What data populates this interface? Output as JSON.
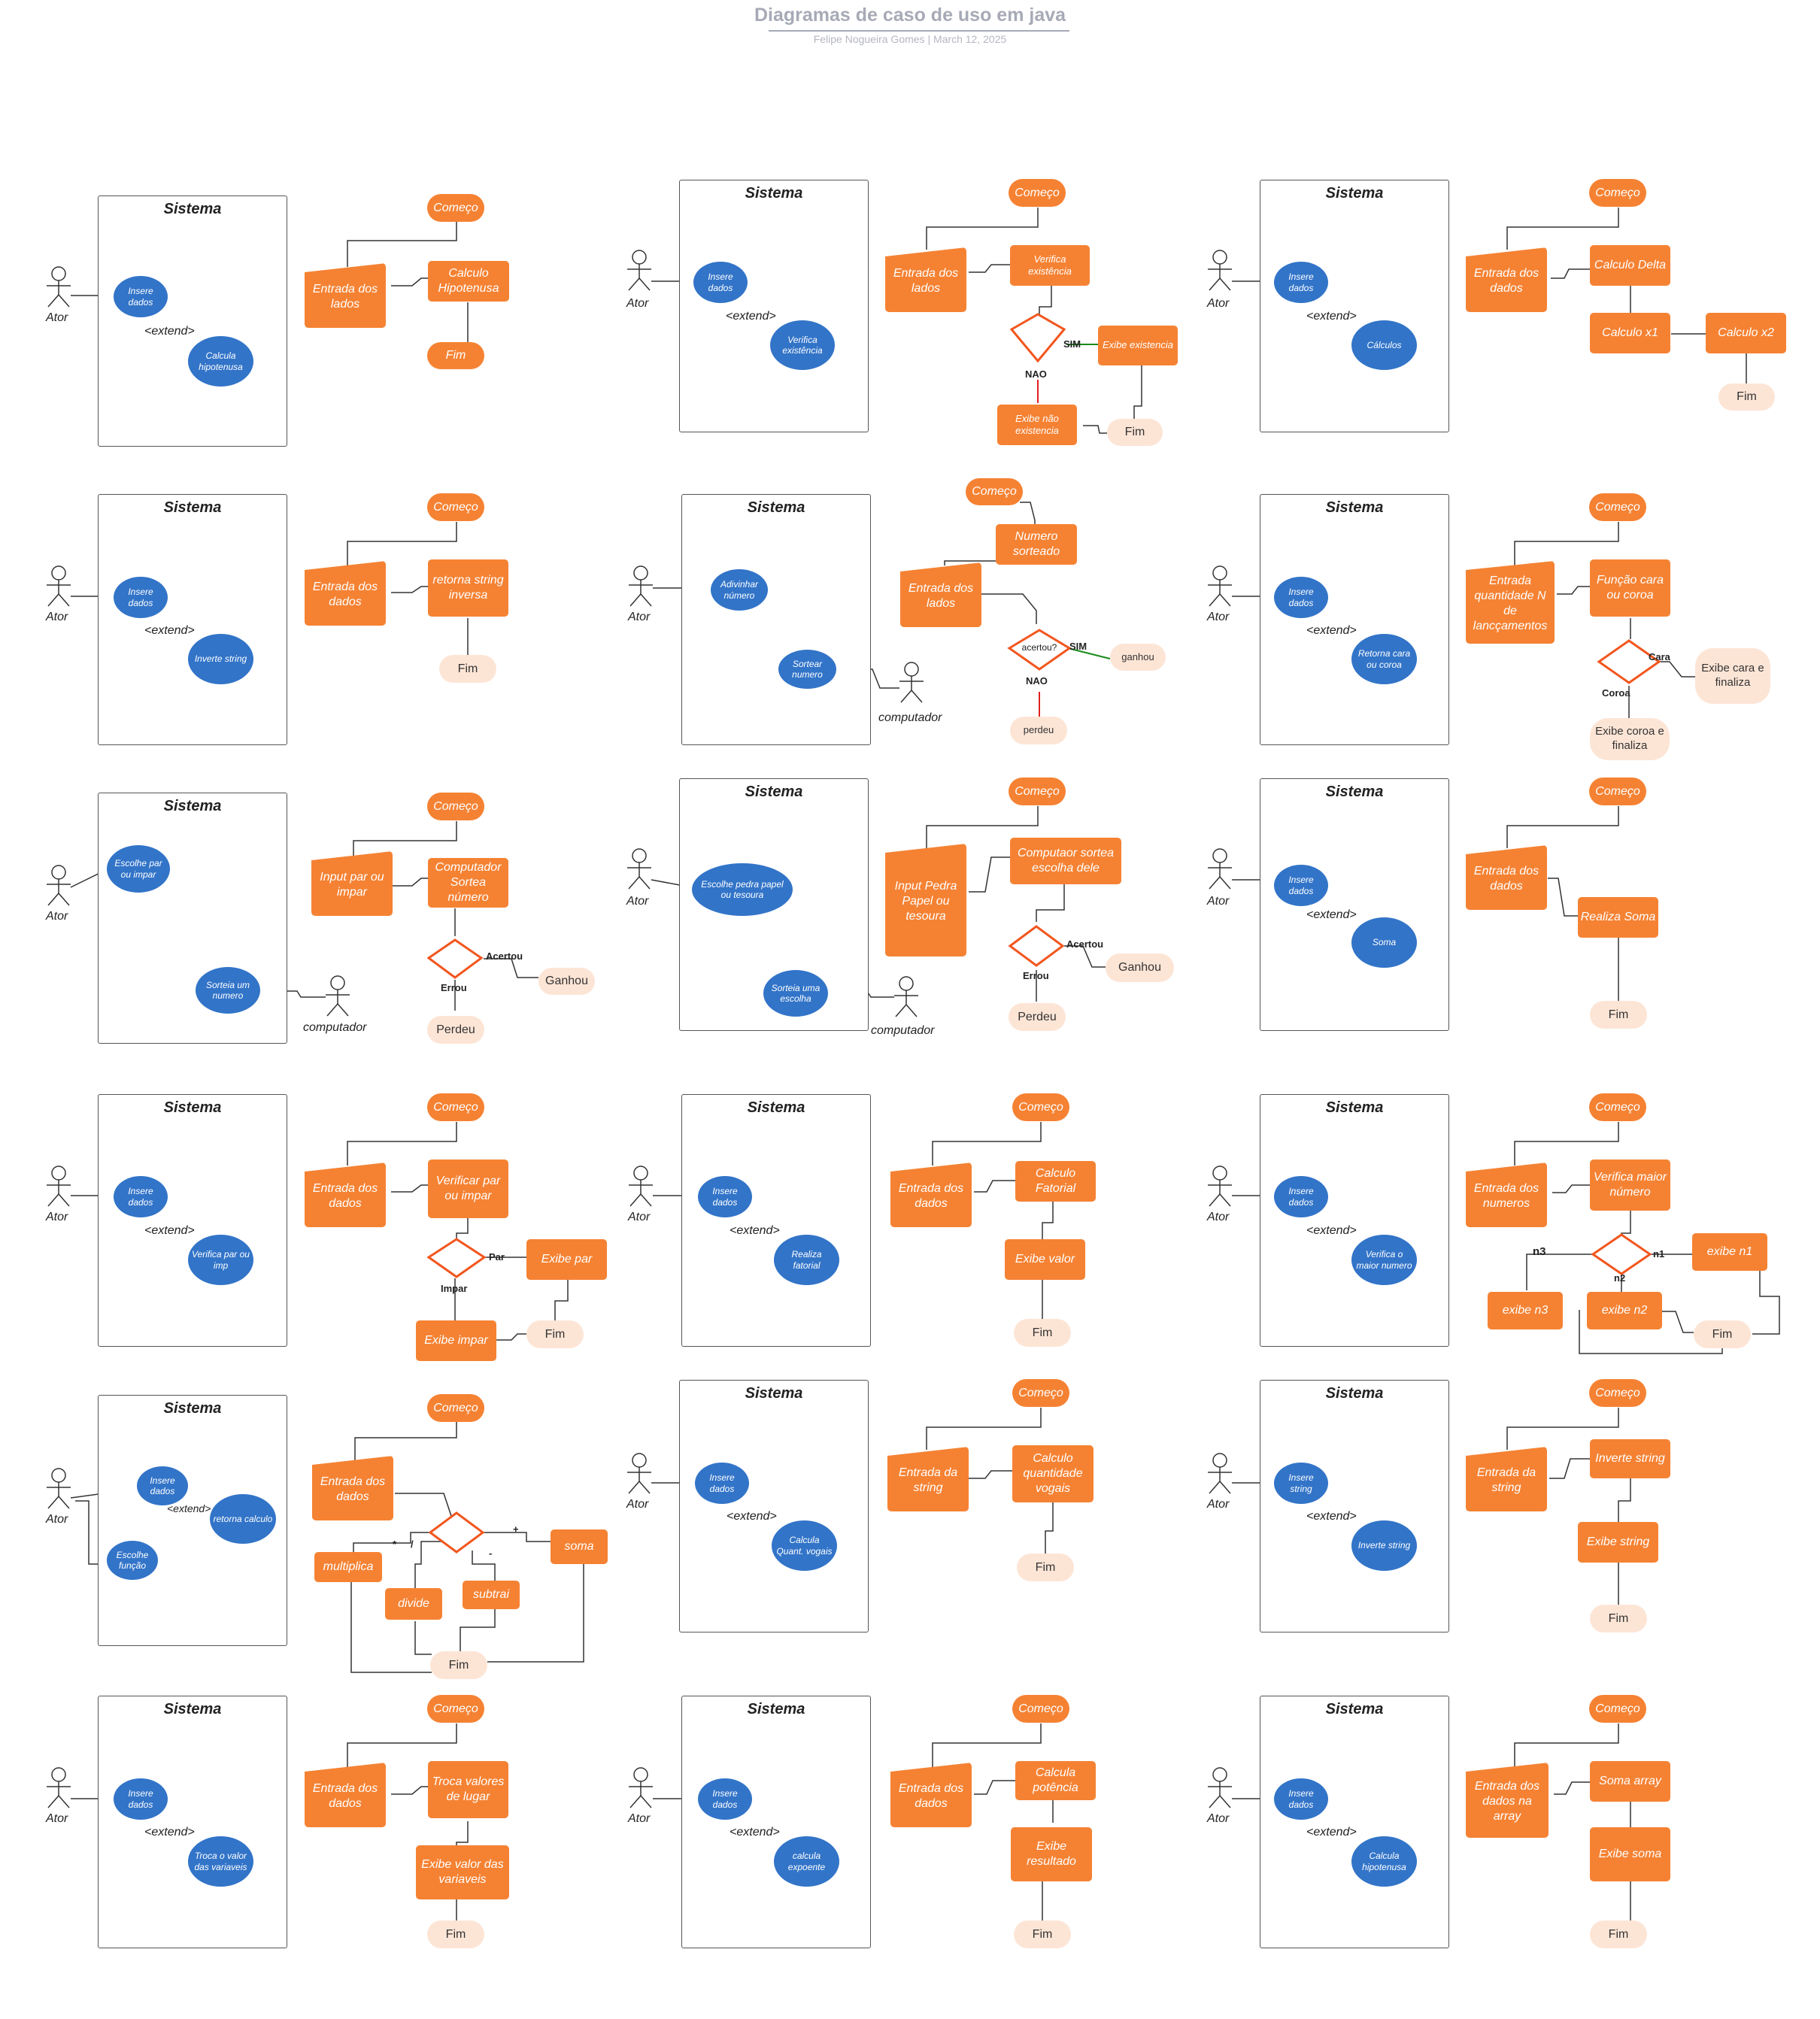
{
  "header": {
    "title": "Diagramas de caso de uso em java",
    "author": "Felipe Nogueira Gomes",
    "separator": "|",
    "date": "March 12, 2025"
  },
  "common": {
    "system": "Sistema",
    "actor": "Ator",
    "computer": "computador",
    "extend": "<extend>",
    "start": "Começo",
    "end": "Fim"
  },
  "d1": {
    "uc1": "Insere dados",
    "uc2": "Calcula hipotenusa",
    "p1": "Entrada dos lados",
    "p2": "Calculo Hipotenusa",
    "end": "Fim"
  },
  "d2": {
    "uc1": "Insere dados",
    "uc2": "Verifica existência",
    "p1": "Entrada dos lados",
    "p2": "Verifica existência",
    "yes": "SIM",
    "no": "NAO",
    "p3": "Exibe existencia",
    "p4": "Exibe não existencia"
  },
  "d3": {
    "uc1": "Insere dados",
    "uc2": "Cálculos",
    "p1": "Entrada dos dados",
    "p2": "Calculo Delta",
    "p3": "Calculo x1",
    "p4": "Calculo x2"
  },
  "d4": {
    "uc1": "Insere dados",
    "uc2": "Inverte string",
    "p1": "Entrada dos dados",
    "p2": "retorna string inversa"
  },
  "d5": {
    "uc1": "Adivinhar número",
    "uc2": "Sortear numero",
    "p0": "Numero sorteado",
    "p1": "Entrada dos lados",
    "dec": "acertou?",
    "yes": "SIM",
    "no": "NAO",
    "win": "ganhou",
    "lose": "perdeu"
  },
  "d6": {
    "uc1": "Insere dados",
    "uc2": "Retorna cara ou coroa",
    "p1": "Entrada quantidade N de lancçamentos",
    "p2": "Função cara ou coroa",
    "a": "Cara",
    "b": "Coroa",
    "ea": "Exibe cara e finaliza",
    "eb": "Exibe coroa e finaliza"
  },
  "d7": {
    "uc1": "Escolhe par ou impar",
    "uc2": "Sorteia um numero",
    "p1": "Input par ou impar",
    "p2": "Computador Sortea número",
    "yes": "Acertou",
    "no": "Errou",
    "win": "Ganhou",
    "lose": "Perdeu"
  },
  "d8": {
    "uc1": "Escolhe pedra papel ou tesoura",
    "uc2": "Sorteia uma escolha",
    "p1": "Input Pedra Papel ou tesoura",
    "p2": "Computaor sortea escolha dele",
    "yes": "Acertou",
    "no": "Errou",
    "win": "Ganhou",
    "lose": "Perdeu"
  },
  "d9": {
    "uc1": "Insere dados",
    "uc2": "Soma",
    "p1": "Entrada dos dados",
    "p2": "Realiza Soma"
  },
  "d10": {
    "uc1": "Insere dados",
    "uc2": "Verifica par ou imp",
    "p1": "Entrada dos dados",
    "p2": "Verificar par ou impar",
    "a": "Par",
    "b": "Impar",
    "ea": "Exibe par",
    "eb": "Exibe impar"
  },
  "d11": {
    "uc1": "Insere dados",
    "uc2": "Realiza fatorial",
    "p1": "Entrada dos dados",
    "p2": "Calculo Fatorial",
    "p3": "Exibe valor"
  },
  "d12": {
    "uc1": "Insere dados",
    "uc2": "Verifica o maior numero",
    "p1": "Entrada dos numeros",
    "p2": "Verifica maior número",
    "l1": "n1",
    "l2": "n2",
    "l3": "n3",
    "e1": "exibe n1",
    "e2": "exibe n2",
    "e3": "exibe n3"
  },
  "d13": {
    "uc1": "Insere dados",
    "uc2": "retorna calculo",
    "uc3": "Escolhe função",
    "p1": "Entrada dos dados",
    "o1": "*",
    "o2": "/",
    "o3": "-",
    "o4": "+",
    "f1": "multiplica",
    "f2": "divide",
    "f3": "subtrai",
    "f4": "soma"
  },
  "d14": {
    "uc1": "Insere dados",
    "uc2": "Calcula Quant. vogais",
    "p1": "Entrada da string",
    "p2": "Calculo quantidade vogais"
  },
  "d15": {
    "uc1": "Insere string",
    "uc2": "Inverte string",
    "p1": "Entrada da string",
    "p2": "Inverte string",
    "p3": "Exibe string"
  },
  "d16": {
    "uc1": "Insere dados",
    "uc2": "Troca o valor das variaveis",
    "p1": "Entrada dos dados",
    "p2": "Troca valores de lugar",
    "p3": "Exibe valor das variaveis"
  },
  "d17": {
    "uc1": "Insere dados",
    "uc2": "calcula expoente",
    "p1": "Entrada dos dados",
    "p2": "Calcula potência",
    "p3": "Exibe resultado"
  },
  "d18": {
    "uc1": "Insere dados",
    "uc2": "Calcula hipotenusa",
    "p1": "Entrada dos dados na array",
    "p2": "Soma array",
    "p3": "Exibe soma"
  },
  "colors": {
    "orange": "#f58233",
    "blue": "#3274c8",
    "peach": "#fde5d6",
    "yes": "#1a8a1a",
    "no": "#e02020"
  }
}
